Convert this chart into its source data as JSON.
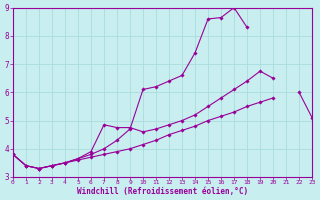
{
  "bg_color": "#c8eef0",
  "grid_color": "#aadddd",
  "line_color": "#990099",
  "marker_color": "#990099",
  "xlabel": "Windchill (Refroidissement éolien,°C)",
  "xlim": [
    0,
    23
  ],
  "ylim": [
    3,
    9
  ],
  "yticks": [
    3,
    4,
    5,
    6,
    7,
    8,
    9
  ],
  "xticks": [
    0,
    1,
    2,
    3,
    4,
    5,
    6,
    7,
    8,
    9,
    10,
    11,
    12,
    13,
    14,
    15,
    16,
    17,
    18,
    19,
    20,
    21,
    22,
    23
  ],
  "series": [
    {
      "x": [
        0,
        1,
        2,
        3,
        4,
        5,
        6,
        7,
        8,
        9,
        10,
        11,
        12,
        13,
        14,
        15,
        16,
        17,
        18,
        19,
        20,
        21,
        22,
        23
      ],
      "y": [
        3.8,
        3.4,
        3.3,
        3.4,
        3.5,
        3.6,
        3.7,
        3.8,
        3.9,
        4.0,
        4.15,
        4.3,
        4.5,
        4.65,
        4.8,
        5.0,
        5.15,
        5.3,
        5.5,
        5.65,
        5.8,
        null,
        null,
        null
      ]
    },
    {
      "x": [
        0,
        1,
        2,
        3,
        4,
        5,
        6,
        7,
        8,
        9,
        10,
        11,
        12,
        13,
        14,
        15,
        16,
        17,
        18
      ],
      "y": [
        3.8,
        3.4,
        3.3,
        3.4,
        3.5,
        3.65,
        3.8,
        4.0,
        4.3,
        4.7,
        6.1,
        6.2,
        6.4,
        6.6,
        7.4,
        8.6,
        8.65,
        9.0,
        8.3
      ]
    },
    {
      "x": [
        0,
        1,
        2,
        3,
        4,
        5,
        6,
        7,
        8,
        9,
        10,
        11,
        12,
        13,
        14,
        15,
        16,
        17,
        18,
        19,
        20,
        21,
        22,
        23
      ],
      "y": [
        3.8,
        3.4,
        3.3,
        3.4,
        3.5,
        3.65,
        3.9,
        4.85,
        4.75,
        4.75,
        4.6,
        4.7,
        4.85,
        5.0,
        5.2,
        5.5,
        5.8,
        6.1,
        6.4,
        6.75,
        6.5,
        null,
        6.0,
        5.1
      ]
    }
  ]
}
